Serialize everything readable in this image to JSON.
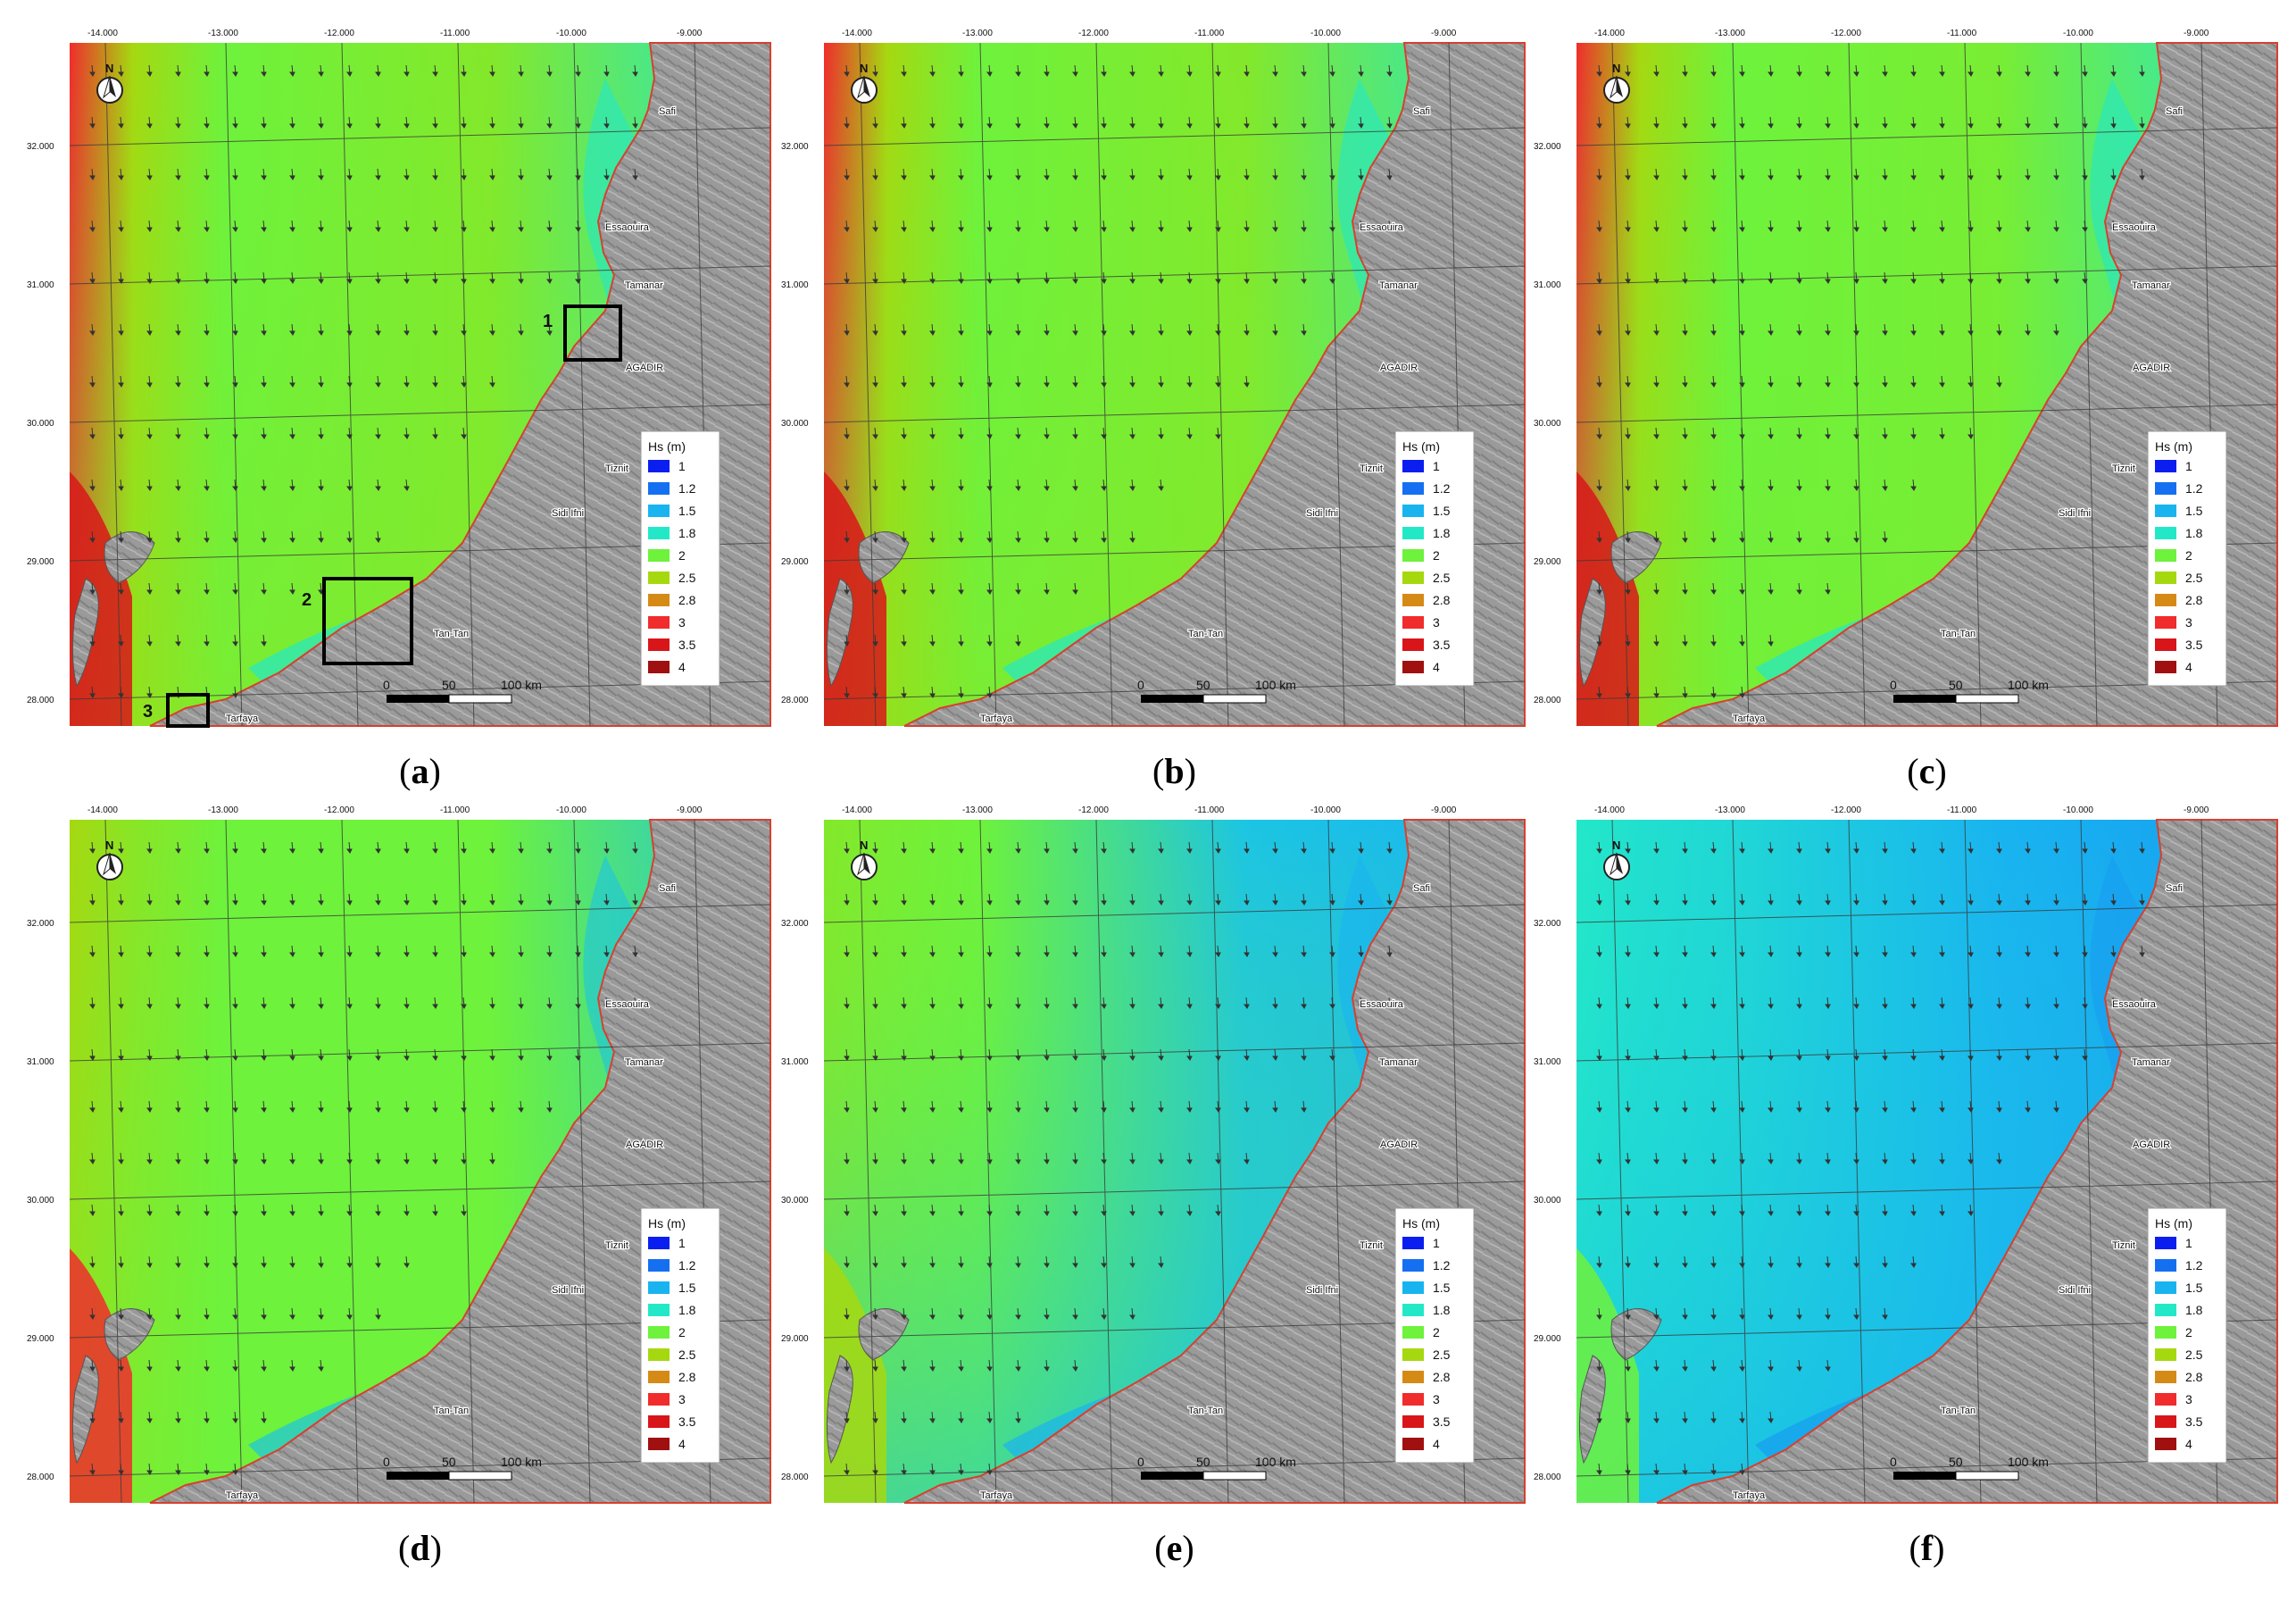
{
  "colors": {
    "legend": [
      "#0a1ef0",
      "#1470f0",
      "#19b4f0",
      "#23e8c8",
      "#6ef23c",
      "#a6d810",
      "#d68a16",
      "#f02c2c",
      "#d8161a",
      "#a01010"
    ],
    "land": "#9a9a9a",
    "land_dark": "#6e6e6e",
    "grid": "#3a3a3a",
    "box": "#000000",
    "arrow": "#333333"
  },
  "shared": {
    "lon_ticks": [
      "-14.000",
      "-13.000",
      "-12.000",
      "-11.000",
      "-10.000",
      "-9.000"
    ],
    "lat_ticks": [
      "32.000",
      "31.000",
      "30.000",
      "29.000",
      "28.000"
    ],
    "legend_title": "Hs (m)",
    "legend_values": [
      "1",
      "1.2",
      "1.5",
      "1.8",
      "2",
      "2.5",
      "2.8",
      "3",
      "3.5",
      "4"
    ],
    "north_label": "N",
    "north_icon": "north-arrow-icon",
    "scale_labels": [
      "0",
      "50",
      "100 km"
    ],
    "places": [
      "Safi",
      "Essaouira",
      "Tamanar",
      "AGADIR",
      "Tiznit",
      "Sidi Ifni",
      "Tan-Tan",
      "Tarfaya"
    ]
  },
  "panels": [
    {
      "label": "a",
      "boxes": [
        "1",
        "2",
        "3"
      ],
      "hs_levels": {
        "open_north": 2.0,
        "open_south": 2.2,
        "west_edge": 3.0,
        "near_shore": 1.8,
        "island_lee": 3.5
      }
    },
    {
      "label": "b",
      "boxes": [],
      "hs_levels": {
        "open_north": 2.0,
        "open_south": 2.2,
        "west_edge": 3.0,
        "near_shore": 1.8,
        "island_lee": 3.5
      }
    },
    {
      "label": "c",
      "boxes": [],
      "hs_levels": {
        "open_north": 2.0,
        "open_south": 2.1,
        "west_edge": 3.0,
        "near_shore": 1.8,
        "island_lee": 3.5
      }
    },
    {
      "label": "d",
      "boxes": [],
      "hs_levels": {
        "open_north": 2.0,
        "open_south": 2.0,
        "west_edge": 2.5,
        "near_shore": 1.6,
        "island_lee": 3.0
      }
    },
    {
      "label": "e",
      "boxes": [],
      "hs_levels": {
        "open_north": 2.0,
        "open_south": 1.6,
        "west_edge": 2.2,
        "near_shore": 1.5,
        "island_lee": 2.5
      }
    },
    {
      "label": "f",
      "boxes": [],
      "hs_levels": {
        "open_north": 1.7,
        "open_south": 1.5,
        "west_edge": 1.8,
        "near_shore": 1.4,
        "island_lee": 2.0
      }
    }
  ]
}
